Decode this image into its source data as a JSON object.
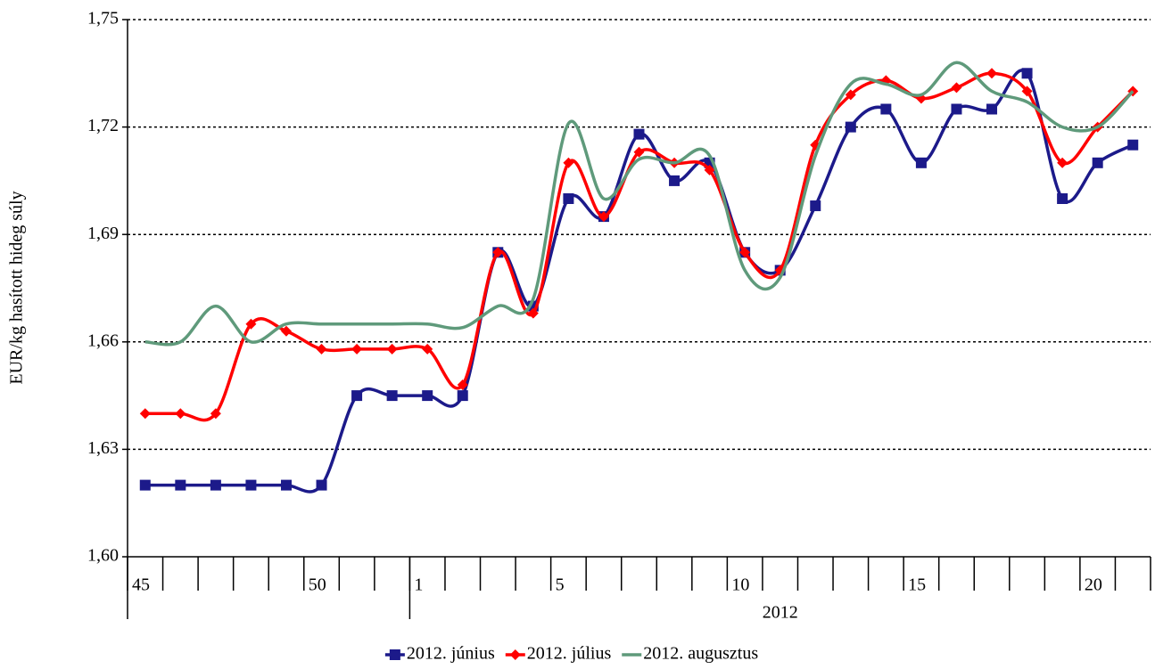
{
  "chart_data": {
    "type": "line",
    "y_label": "EUR/kg hasított hideg súly",
    "categories": [
      "45",
      null,
      null,
      null,
      null,
      "50",
      null,
      null,
      "1",
      null,
      null,
      null,
      "5",
      null,
      null,
      null,
      null,
      "10",
      null,
      null,
      null,
      null,
      "15",
      null,
      null,
      null,
      null,
      "20",
      null
    ],
    "x_group_label": "2012",
    "ylim": [
      1.6,
      1.75
    ],
    "yticks": [
      {
        "value": 1.6,
        "label": "1,60"
      },
      {
        "value": 1.63,
        "label": "1,63"
      },
      {
        "value": 1.66,
        "label": "1,66"
      },
      {
        "value": 1.69,
        "label": "1,69"
      },
      {
        "value": 1.72,
        "label": "1,72"
      },
      {
        "value": 1.75,
        "label": "1,75"
      }
    ],
    "grid": true,
    "smooth": true,
    "legend": "bottom",
    "series": [
      {
        "name": "2012. június",
        "color": "#1c1a8a",
        "marker": "square",
        "values": [
          1.62,
          1.62,
          1.62,
          1.62,
          1.62,
          1.62,
          1.645,
          1.645,
          1.645,
          1.645,
          1.685,
          1.67,
          1.7,
          1.695,
          1.718,
          1.705,
          1.71,
          1.685,
          1.68,
          1.698,
          1.72,
          1.725,
          1.71,
          1.725,
          1.725,
          1.735,
          1.7,
          1.71,
          1.715
        ]
      },
      {
        "name": "2012. július",
        "color": "#ff0000",
        "marker": "diamond",
        "values": [
          1.64,
          1.64,
          1.64,
          1.665,
          1.663,
          1.658,
          1.658,
          1.658,
          1.658,
          1.648,
          1.685,
          1.668,
          1.71,
          1.695,
          1.713,
          1.71,
          1.708,
          1.685,
          1.68,
          1.715,
          1.729,
          1.733,
          1.728,
          1.731,
          1.735,
          1.73,
          1.71,
          1.72,
          1.73
        ]
      },
      {
        "name": "2012. augusztus",
        "color": "#5f9a7b",
        "values": [
          1.66,
          1.66,
          1.67,
          1.66,
          1.665,
          1.665,
          1.665,
          1.665,
          1.665,
          1.664,
          1.67,
          1.672,
          1.721,
          1.7,
          1.711,
          1.71,
          1.712,
          1.68,
          1.678,
          1.712,
          1.732,
          1.732,
          1.729,
          1.738,
          1.73,
          1.727,
          1.72,
          1.72,
          1.73
        ]
      }
    ]
  }
}
